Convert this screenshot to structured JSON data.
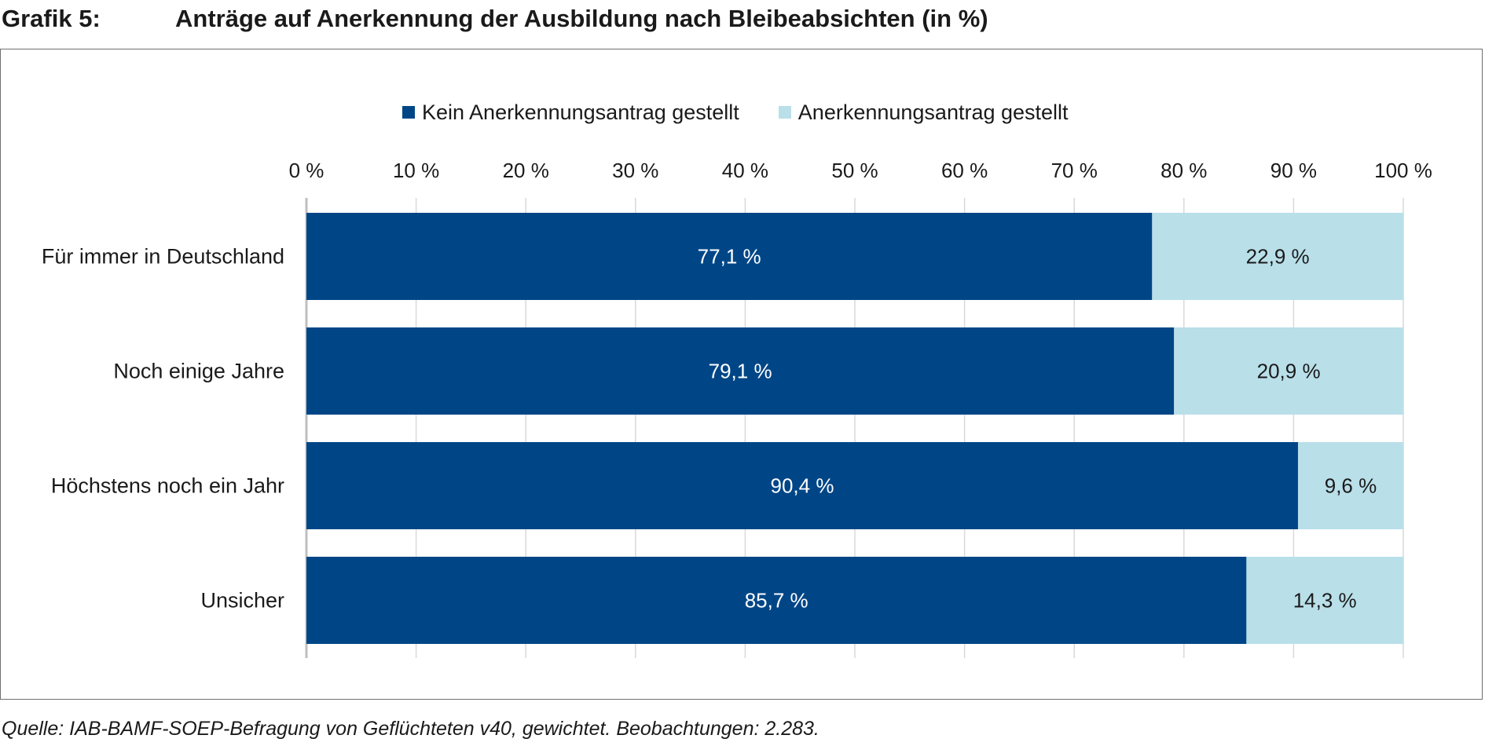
{
  "figure_label": "Grafik 5:",
  "figure_title": "Anträge auf Anerkennung der Ausbildung nach Bleibeabsichten (in %)",
  "source": "Quelle: IAB-BAMF-SOEP-Befragung von Geflüchteten v40, gewichtet. Beobachtungen: 2.283.",
  "colors": {
    "dark": "#004687",
    "light": "#b9dfe9",
    "grid": "#d9d9d9",
    "axis": "#bfbfbf"
  },
  "chart_data": {
    "type": "bar",
    "orientation": "horizontal",
    "stacked": true,
    "categories": [
      "Für immer in Deutschland",
      "Noch einige Jahre",
      "Höchstens noch ein Jahr",
      "Unsicher"
    ],
    "series": [
      {
        "name": "Kein Anerkennungsantrag gestellt",
        "color": "#004687",
        "values": [
          77.1,
          79.1,
          90.4,
          85.7
        ],
        "labels": [
          "77,1 %",
          "79,1 %",
          "90,4 %",
          "85,7 %"
        ]
      },
      {
        "name": "Anerkennungsantrag gestellt",
        "color": "#b9dfe9",
        "values": [
          22.9,
          20.9,
          9.6,
          14.3
        ],
        "labels": [
          "22,9 %",
          "20,9 %",
          "9,6 %",
          "14,3 %"
        ]
      }
    ],
    "xlim": [
      0,
      100
    ],
    "xticks": [
      0,
      10,
      20,
      30,
      40,
      50,
      60,
      70,
      80,
      90,
      100
    ],
    "xtick_labels": [
      "0 %",
      "10 %",
      "20 %",
      "30 %",
      "40 %",
      "50 %",
      "60 %",
      "70 %",
      "80 %",
      "90 %",
      "100 %"
    ],
    "grid": true,
    "legend_position": "top"
  }
}
